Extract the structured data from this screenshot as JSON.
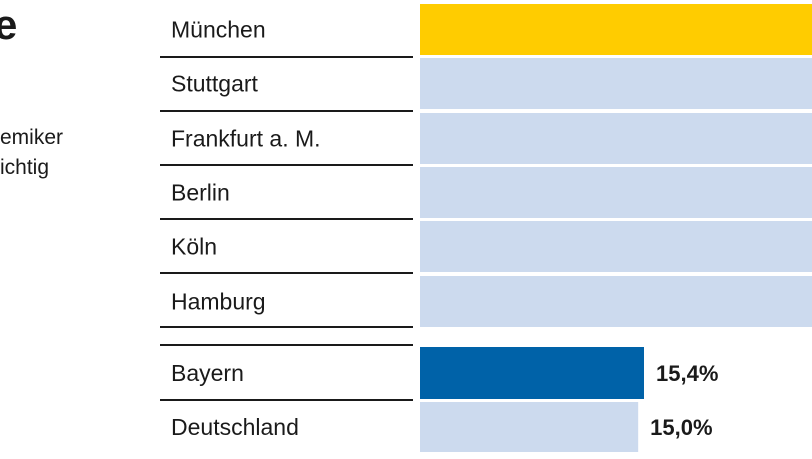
{
  "header": {
    "title_fragment": "e",
    "subtitle_lines": [
      "emiker",
      "ichtig"
    ]
  },
  "colors": {
    "highlight": "#FFCC00",
    "city_bar": "#CCDAEE",
    "region_bar": "#0062A8",
    "divider": "#1a1a1a"
  },
  "chart_data": {
    "type": "bar",
    "orientation": "horizontal",
    "categories": [
      "München",
      "Stuttgart",
      "Frankfurt a. M.",
      "Berlin",
      "Köln",
      "Hamburg",
      "Bayern",
      "Deutschland"
    ],
    "values": [
      null,
      null,
      null,
      null,
      null,
      null,
      15.4,
      15.0
    ],
    "value_labels": [
      "",
      "",
      "",
      "",
      "",
      "",
      "15,4%",
      "15,0%"
    ],
    "groups": [
      "city",
      "city",
      "city",
      "city",
      "city",
      "city",
      "region",
      "region"
    ],
    "highlight": "München",
    "xlabel": "",
    "ylabel": "",
    "xlim": [
      0,
      27.5
    ],
    "grid": false,
    "legend": "none"
  }
}
